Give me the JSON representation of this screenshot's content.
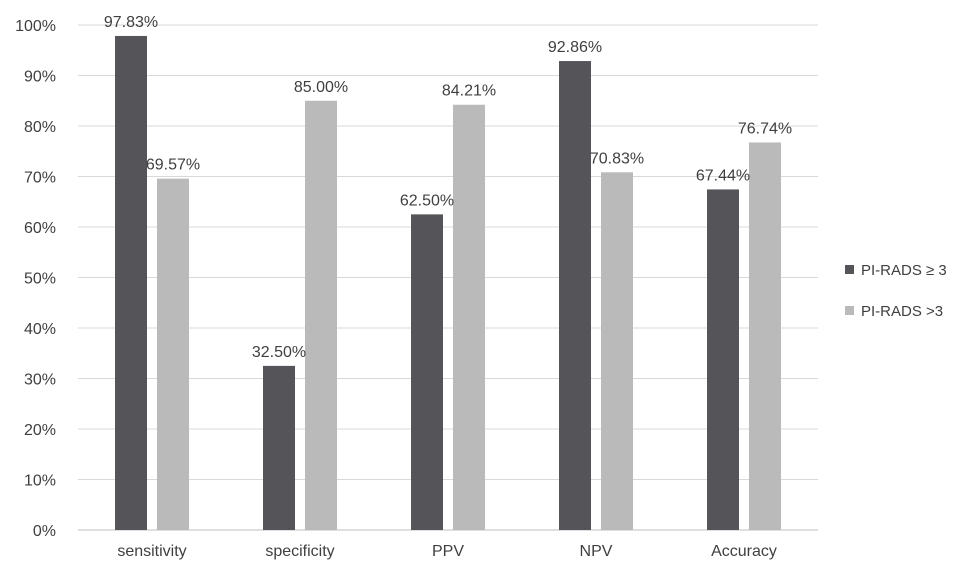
{
  "chart_data": {
    "type": "bar",
    "title": "",
    "xlabel": "",
    "ylabel": "",
    "categories": [
      "sensitivity",
      "specificity",
      "PPV",
      "NPV",
      "Accuracy"
    ],
    "series": [
      {
        "name": "PI-RADS ≥ 3",
        "color": "#555559",
        "values": [
          97.83,
          32.5,
          62.5,
          92.86,
          67.44
        ],
        "labels": [
          "97.83%",
          "32.50%",
          "62.50%",
          "92.86%",
          "67.44%"
        ]
      },
      {
        "name": "PI-RADS >3",
        "color": "#bababa",
        "values": [
          69.57,
          85.0,
          84.21,
          70.83,
          76.74
        ],
        "labels": [
          "69.57%",
          "85.00%",
          "84.21%",
          "70.83%",
          "76.74%"
        ]
      }
    ],
    "ylim": [
      0,
      100
    ],
    "yticks": [
      "0%",
      "10%",
      "20%",
      "30%",
      "40%",
      "50%",
      "60%",
      "70%",
      "80%",
      "90%",
      "100%"
    ],
    "grid": true,
    "legend_position": "right"
  }
}
